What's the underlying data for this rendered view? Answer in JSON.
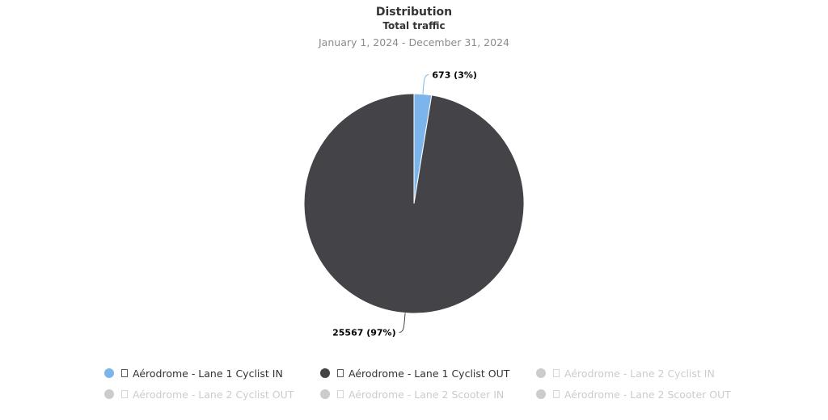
{
  "chart_data": {
    "type": "pie",
    "title": "Distribution",
    "subtitle": "Total traffic",
    "date_range": "January 1, 2024 - December 31, 2024",
    "slices": [
      {
        "name": "Aérodrome - Lane 1 Cyclist IN",
        "value": 673,
        "percent": 3,
        "label": "673 (3%)",
        "color": "#7cb5ec"
      },
      {
        "name": "Aérodrome - Lane 1 Cyclist OUT",
        "value": 25567,
        "percent": 97,
        "label": "25567 (97%)",
        "color": "#434348"
      }
    ],
    "legend_position": "bottom",
    "legend": [
      {
        "label": "Aérodrome - Lane 1 Cyclist IN",
        "color": "#7cb5ec",
        "active": true
      },
      {
        "label": "Aérodrome - Lane 1 Cyclist OUT",
        "color": "#434348",
        "active": true
      },
      {
        "label": "Aérodrome - Lane 2 Cyclist IN",
        "color": "#cccccc",
        "active": false
      },
      {
        "label": "Aérodrome - Lane 2 Cyclist OUT",
        "color": "#cccccc",
        "active": false
      },
      {
        "label": "Aérodrome - Lane 2 Scooter IN",
        "color": "#cccccc",
        "active": false
      },
      {
        "label": "Aérodrome - Lane 2 Scooter OUT",
        "color": "#cccccc",
        "active": false
      }
    ]
  }
}
